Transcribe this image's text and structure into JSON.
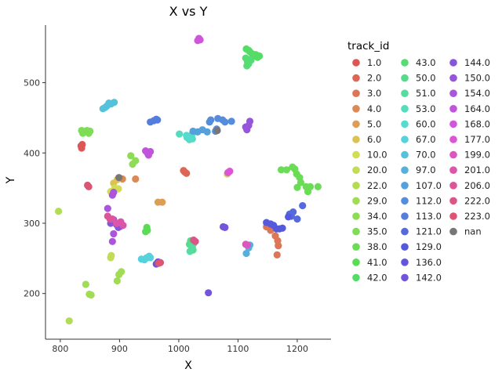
{
  "chart_data": {
    "type": "scatter",
    "title": "X vs Y",
    "xlabel": "X",
    "ylabel": "Y",
    "xlim": [
      775,
      1257
    ],
    "ylim": [
      135,
      582
    ],
    "xticks": [
      800,
      900,
      1000,
      1100,
      1200
    ],
    "yticks": [
      200,
      300,
      400,
      500
    ],
    "grid": false,
    "legend": {
      "title": "track_id",
      "placement": "right",
      "columns": 3
    },
    "series": [
      {
        "name": "1.0",
        "color": "#dc5656",
        "points": [
          [
            835,
            410
          ],
          [
            836,
            407
          ],
          [
            837,
            412
          ]
        ]
      },
      {
        "name": "2.0",
        "color": "#dc6755",
        "points": [
          [
            1008,
            375
          ],
          [
            1010,
            373
          ],
          [
            1013,
            371
          ]
        ]
      },
      {
        "name": "3.0",
        "color": "#dc7655",
        "points": [
          [
            1148,
            295
          ],
          [
            1155,
            290
          ],
          [
            1163,
            282
          ],
          [
            1167,
            275
          ],
          [
            1168,
            268
          ],
          [
            1166,
            255
          ]
        ]
      },
      {
        "name": "4.0",
        "color": "#dc8a55",
        "points": [
          [
            905,
            363
          ],
          [
            927,
            363
          ]
        ]
      },
      {
        "name": "5.0",
        "color": "#dc9e55",
        "points": [
          [
            965,
            330
          ],
          [
            972,
            330
          ]
        ]
      },
      {
        "name": "6.0",
        "color": "#dcc255",
        "points": [
          [
            890,
            357
          ],
          [
            896,
            362
          ]
        ]
      },
      {
        "name": "10.0",
        "color": "#d2dc55",
        "points": [
          [
            885,
            345
          ],
          [
            892,
            350
          ],
          [
            898,
            349
          ]
        ]
      },
      {
        "name": "20.0",
        "color": "#c2dc55",
        "points": [
          [
            885,
            251
          ],
          [
            886,
            254
          ],
          [
            1082,
            370
          ]
        ]
      },
      {
        "name": "22.0",
        "color": "#b3dc55",
        "points": [
          [
            797,
            317
          ],
          [
            815,
            161
          ]
        ]
      },
      {
        "name": "29.0",
        "color": "#a1dc55",
        "points": [
          [
            843,
            213
          ],
          [
            849,
            199
          ],
          [
            852,
            198
          ],
          [
            896,
            218
          ],
          [
            899,
            227
          ],
          [
            903,
            231
          ]
        ]
      },
      {
        "name": "34.0",
        "color": "#8ddc55",
        "points": [
          [
            922,
            384
          ],
          [
            927,
            389
          ],
          [
            919,
            396
          ]
        ]
      },
      {
        "name": "35.0",
        "color": "#7edc55",
        "points": [
          [
            836,
            432
          ],
          [
            838,
            428
          ],
          [
            845,
            432
          ],
          [
            848,
            428
          ],
          [
            850,
            431
          ]
        ]
      },
      {
        "name": "38.0",
        "color": "#6adc55",
        "points": [
          [
            1173,
            376
          ],
          [
            1182,
            376
          ],
          [
            1192,
            380
          ],
          [
            1196,
            377
          ],
          [
            1199,
            370
          ],
          [
            1204,
            365
          ],
          [
            1206,
            358
          ],
          [
            1200,
            351
          ],
          [
            1215,
            352
          ],
          [
            1218,
            345
          ],
          [
            1222,
            352
          ],
          [
            1235,
            352
          ]
        ]
      },
      {
        "name": "41.0",
        "color": "#5adc55",
        "points": [
          [
            944,
            288
          ],
          [
            946,
            294
          ],
          [
            947,
            290
          ]
        ]
      },
      {
        "name": "42.0",
        "color": "#55dc66",
        "points": [
          [
            1114,
            548
          ],
          [
            1118,
            546
          ],
          [
            1120,
            544
          ],
          [
            1124,
            541
          ],
          [
            1127,
            538
          ],
          [
            1130,
            540
          ],
          [
            1133,
            536
          ],
          [
            1136,
            538
          ]
        ]
      },
      {
        "name": "43.0",
        "color": "#55dc75",
        "points": [
          [
            1113,
            535
          ],
          [
            1116,
            530
          ],
          [
            1118,
            527
          ],
          [
            1120,
            533
          ],
          [
            1115,
            524
          ],
          [
            1122,
            532
          ]
        ]
      },
      {
        "name": "50.0",
        "color": "#55dc8a",
        "points": [
          [
            1018,
            270
          ],
          [
            1020,
            275
          ],
          [
            1022,
            266
          ],
          [
            1024,
            262
          ],
          [
            1021,
            273
          ]
        ]
      },
      {
        "name": "51.0",
        "color": "#55dc9e",
        "points": [
          [
            1019,
            260
          ],
          [
            1023,
            267
          ],
          [
            1025,
            271
          ]
        ]
      },
      {
        "name": "53.0",
        "color": "#55dcbd",
        "points": [
          [
            1001,
            427
          ],
          [
            1014,
            422
          ],
          [
            1018,
            419
          ],
          [
            1023,
            420
          ]
        ]
      },
      {
        "name": "60.0",
        "color": "#55dcce",
        "points": [
          [
            1013,
            425
          ],
          [
            1020,
            421
          ],
          [
            1022,
            426
          ],
          [
            1026,
            430
          ]
        ]
      },
      {
        "name": "67.0",
        "color": "#55d2dc",
        "points": [
          [
            937,
            249
          ],
          [
            942,
            248
          ],
          [
            946,
            251
          ],
          [
            950,
            253
          ],
          [
            952,
            251
          ]
        ]
      },
      {
        "name": "70.0",
        "color": "#55c2dc",
        "points": [
          [
            872,
            463
          ],
          [
            876,
            465
          ],
          [
            879,
            467
          ],
          [
            882,
            471
          ],
          [
            886,
            470
          ],
          [
            891,
            472
          ]
        ]
      },
      {
        "name": "97.0",
        "color": "#55b1dc",
        "points": [
          [
            1114,
            257
          ],
          [
            1118,
            265
          ],
          [
            1120,
            269
          ]
        ]
      },
      {
        "name": "107.0",
        "color": "#55a1dc",
        "points": [
          [
            1024,
            431
          ],
          [
            1032,
            430
          ],
          [
            1040,
            433
          ],
          [
            1048,
            430
          ]
        ]
      },
      {
        "name": "112.0",
        "color": "#558ddc",
        "points": [
          [
            1052,
            444
          ],
          [
            1054,
            447
          ],
          [
            1062,
            431
          ],
          [
            1064,
            434
          ],
          [
            1066,
            449
          ],
          [
            1074,
            447
          ],
          [
            1078,
            444
          ],
          [
            1089,
            445
          ]
        ]
      },
      {
        "name": "113.0",
        "color": "#557ddc",
        "points": [
          [
            952,
            444
          ],
          [
            958,
            446
          ],
          [
            962,
            448
          ],
          [
            964,
            447
          ]
        ]
      },
      {
        "name": "121.0",
        "color": "#556adc",
        "points": [
          [
            1187,
            313
          ],
          [
            1190,
            310
          ],
          [
            1193,
            316
          ],
          [
            1200,
            306
          ],
          [
            1209,
            325
          ]
        ]
      },
      {
        "name": "129.0",
        "color": "#555adc",
        "points": [
          [
            1148,
            301
          ],
          [
            1155,
            299
          ],
          [
            1160,
            297
          ],
          [
            1165,
            292
          ],
          [
            1170,
            292
          ],
          [
            1175,
            293
          ],
          [
            1185,
            309
          ]
        ]
      },
      {
        "name": "136.0",
        "color": "#6355dc",
        "points": [
          [
            962,
            242
          ],
          [
            965,
            245
          ],
          [
            968,
            244
          ]
        ]
      },
      {
        "name": "142.0",
        "color": "#7355dc",
        "points": [
          [
            1050,
            201
          ],
          [
            1075,
            295
          ],
          [
            1078,
            294
          ]
        ]
      },
      {
        "name": "144.0",
        "color": "#8755dc",
        "points": [
          [
            885,
            300
          ],
          [
            890,
            305
          ],
          [
            895,
            298
          ],
          [
            898,
            294
          ],
          [
            902,
            296
          ]
        ]
      },
      {
        "name": "150.0",
        "color": "#9755dc",
        "points": [
          [
            1113,
            437
          ],
          [
            1115,
            433
          ],
          [
            1118,
            439
          ],
          [
            1120,
            445
          ]
        ]
      },
      {
        "name": "154.0",
        "color": "#ab55dc",
        "points": [
          [
            888,
            340
          ],
          [
            890,
            344
          ],
          [
            880,
            321
          ],
          [
            890,
            285
          ],
          [
            888,
            274
          ]
        ]
      },
      {
        "name": "164.0",
        "color": "#c055dc",
        "points": [
          [
            944,
            403
          ],
          [
            947,
            400
          ],
          [
            949,
            397
          ],
          [
            952,
            402
          ]
        ]
      },
      {
        "name": "168.0",
        "color": "#d155dc",
        "points": [
          [
            1032,
            560
          ],
          [
            1034,
            563
          ],
          [
            1036,
            561
          ]
        ]
      },
      {
        "name": "177.0",
        "color": "#dc55d4",
        "points": [
          [
            1083,
            372
          ],
          [
            1086,
            374
          ]
        ]
      },
      {
        "name": "199.0",
        "color": "#dc55c0",
        "points": [
          [
            1113,
            270
          ],
          [
            1116,
            269
          ]
        ]
      },
      {
        "name": "201.0",
        "color": "#dc55ab",
        "points": [
          [
            888,
            306
          ],
          [
            895,
            300
          ],
          [
            902,
            302
          ],
          [
            906,
            297
          ]
        ]
      },
      {
        "name": "206.0",
        "color": "#dc5597",
        "points": [
          [
            880,
            310
          ],
          [
            884,
            306
          ]
        ]
      },
      {
        "name": "222.0",
        "color": "#dc5587",
        "points": [
          [
            1025,
            276
          ],
          [
            1028,
            274
          ]
        ]
      },
      {
        "name": "223.0",
        "color": "#dc5573",
        "points": [
          [
            846,
            354
          ],
          [
            848,
            352
          ],
          [
            966,
            243
          ],
          [
            969,
            244
          ]
        ]
      },
      {
        "name": "nan",
        "color": "#777777",
        "points": [
          [
            899,
            365
          ],
          [
            1065,
            432
          ]
        ]
      }
    ]
  }
}
